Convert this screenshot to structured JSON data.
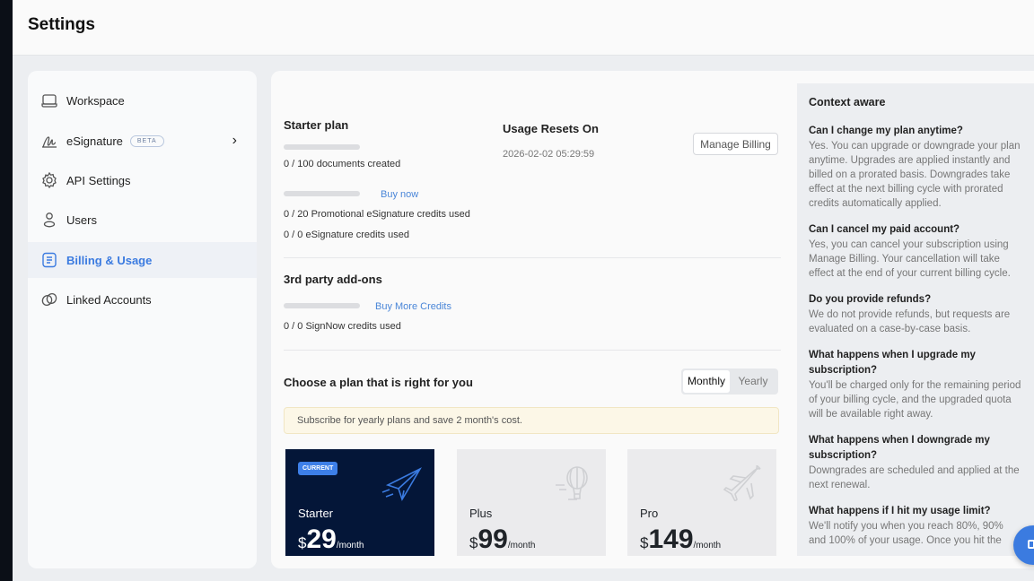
{
  "header": {
    "title": "Settings"
  },
  "sidebar": {
    "items": [
      {
        "label": "Workspace",
        "icon": "laptop-icon"
      },
      {
        "label": "eSignature",
        "badge": "BETA",
        "icon": "signature-icon"
      },
      {
        "label": "API Settings",
        "icon": "gear-icon"
      },
      {
        "label": "Users",
        "icon": "user-icon"
      },
      {
        "label": "Billing & Usage",
        "icon": "document-icon",
        "active": true
      },
      {
        "label": "Linked Accounts",
        "icon": "link-icon"
      }
    ]
  },
  "billing": {
    "plan_title": "Starter plan",
    "documents": {
      "text": "0 / 100 documents created",
      "progress": 0
    },
    "promo": {
      "text": "0 / 20 Promotional eSignature credits used",
      "progress": 0,
      "link": "Buy now"
    },
    "esign": {
      "text": "0 / 0 eSignature credits used"
    },
    "reset_title": "Usage Resets On",
    "reset_date": "2026-02-02 05:29:59",
    "manage_billing": "Manage Billing",
    "addons_title": "3rd party add-ons",
    "signnow": {
      "text": "0 / 0 SignNow credits used",
      "progress": 0,
      "link": "Buy More Credits"
    }
  },
  "plans": {
    "title": "Choose a plan that is right for you",
    "toggle": {
      "monthly": "Monthly",
      "yearly": "Yearly",
      "selected": "Monthly"
    },
    "notice": "Subscribe for yearly plans and save 2 month's cost.",
    "cards": [
      {
        "name": "Starter",
        "currency": "$",
        "price": "29",
        "period": "/month",
        "badge": "CURRENT",
        "icon": "paper-plane-icon"
      },
      {
        "name": "Plus",
        "currency": "$",
        "price": "99",
        "period": "/month",
        "icon": "hot-air-balloon-icon"
      },
      {
        "name": "Pro",
        "currency": "$",
        "price": "149",
        "period": "/month",
        "icon": "airplane-icon"
      }
    ]
  },
  "faq": {
    "title": "Context aware",
    "items": [
      {
        "q": "Can I change my plan anytime?",
        "a": "Yes. You can upgrade or downgrade your plan anytime. Upgrades are applied instantly and billed on a prorated basis. Downgrades take effect at the next billing cycle with prorated credits automatically applied."
      },
      {
        "q": "Can I cancel my paid account?",
        "a": "Yes, you can cancel your subscription using Manage Billing. Your cancellation will take effect at the end of your current billing cycle."
      },
      {
        "q": "Do you provide refunds?",
        "a": "We do not provide refunds, but requests are evaluated on a case-by-case basis."
      },
      {
        "q": "What happens when I upgrade my subscription?",
        "a": "You'll be charged only for the remaining period of your billing cycle, and the upgraded quota will be available right away."
      },
      {
        "q": "What happens when I downgrade my subscription?",
        "a": "Downgrades are scheduled and applied at the next renewal."
      },
      {
        "q": "What happens if I hit my usage limit?",
        "a": "We'll notify you when you reach 80%, 90% and 100% of your usage. Once you hit the"
      }
    ]
  },
  "colors": {
    "accent": "#3b7be0",
    "current_card": "#041638",
    "notice_bg": "#fcf7e7"
  }
}
